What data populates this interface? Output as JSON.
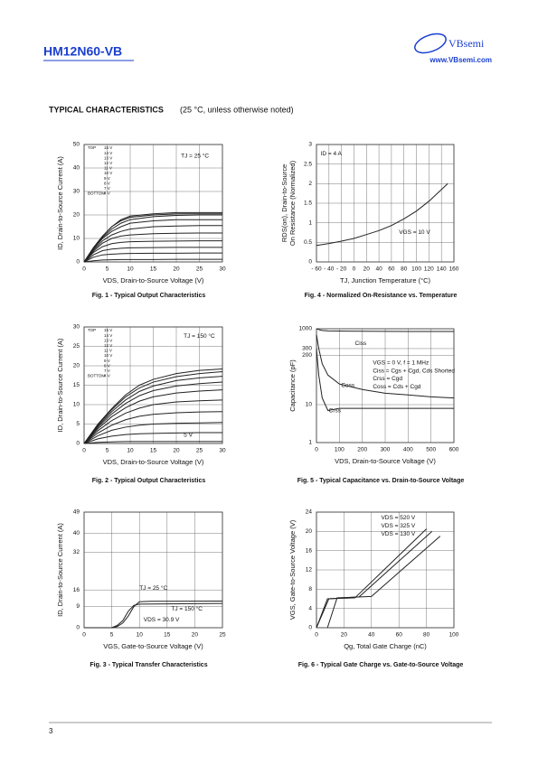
{
  "header": {
    "part": "HM12N60-VB",
    "brand": "VBsemi",
    "url": "www.VBsemi.com"
  },
  "section_title": "TYPICAL CHARACTERISTICS",
  "section_note": "(25 °C, unless otherwise noted)",
  "page_number": "3",
  "chart_data": [
    {
      "type": "line",
      "caption": "Fig. 1 - Typical Output Characteristics",
      "xlabel": "VDS, Drain-to-Source Voltage (V)",
      "ylabel": [
        "ID, Drain-to-Source Current (A)"
      ],
      "xlim": [
        0,
        30
      ],
      "xticks": [
        0,
        5,
        10,
        15,
        20,
        25,
        30
      ],
      "ylim": [
        0,
        50
      ],
      "yticks": [
        0,
        10,
        20,
        30,
        40,
        50
      ],
      "grid": true,
      "legend_top": "TOP",
      "legend_bottom": "BOTTOM",
      "annotations": [
        "TJ = 25 °C"
      ],
      "x": [
        0,
        2,
        4,
        6,
        8,
        10,
        15,
        20,
        25,
        30
      ],
      "series": [
        {
          "name": "15 V",
          "color": "#222",
          "values": [
            0,
            6,
            11,
            15,
            18,
            19.5,
            20.5,
            21,
            21,
            21
          ]
        },
        {
          "name": "14 V",
          "color": "#222",
          "values": [
            0,
            6,
            11,
            15,
            17.5,
            19,
            20,
            20.5,
            20.5,
            20.5
          ]
        },
        {
          "name": "13 V",
          "color": "#222",
          "values": [
            0,
            5.8,
            10.5,
            14,
            16.5,
            18,
            19.3,
            19.8,
            20,
            20
          ]
        },
        {
          "name": "12 V",
          "color": "#222",
          "values": [
            0,
            5.5,
            10,
            13,
            15,
            16.5,
            17.5,
            18,
            18,
            18
          ]
        },
        {
          "name": "11 V",
          "color": "#222",
          "values": [
            0,
            5,
            9,
            11.5,
            13,
            14,
            15,
            15.3,
            15.5,
            15.5
          ]
        },
        {
          "name": "10 V",
          "color": "#222",
          "values": [
            0,
            4.5,
            8,
            10,
            11,
            11.5,
            12,
            12.2,
            12.3,
            12.3
          ]
        },
        {
          "name": "9 V",
          "color": "#222",
          "values": [
            0,
            4,
            6.5,
            7.8,
            8.3,
            8.6,
            8.8,
            8.9,
            9,
            9
          ]
        },
        {
          "name": "8 V",
          "color": "#222",
          "values": [
            0,
            3,
            4.8,
            5.5,
            5.8,
            6,
            6.1,
            6.2,
            6.2,
            6.2
          ]
        },
        {
          "name": "7 V",
          "color": "#222",
          "values": [
            0,
            2,
            3,
            3.3,
            3.5,
            3.6,
            3.7,
            3.7,
            3.8,
            3.8
          ]
        },
        {
          "name": "4 V",
          "color": "#222",
          "values": [
            0,
            0.5,
            0.8,
            0.9,
            1,
            1,
            1,
            1.1,
            1.1,
            1.1
          ]
        }
      ]
    },
    {
      "type": "line",
      "caption": "Fig. 4 - Normalized On-Resistance vs. Temperature",
      "xlabel": "TJ, Junction Temperature (°C)",
      "ylabel": [
        "RDS(on), Drain-to-Source",
        "On Resistance (Normalized)"
      ],
      "xlim": [
        -60,
        160
      ],
      "xticks": [
        {
          "value": -60,
          "label": "- 60"
        },
        {
          "value": -40,
          "label": "- 40"
        },
        {
          "value": -20,
          "label": "- 20"
        },
        0,
        20,
        40,
        60,
        80,
        100,
        120,
        140,
        160
      ],
      "ylim": [
        0,
        3
      ],
      "yticks": [
        0,
        0.5,
        1,
        1.5,
        2,
        2.5,
        3
      ],
      "grid": true,
      "annotations": [
        "ID = 4 A",
        "VGS = 10 V"
      ],
      "x": [
        -60,
        -40,
        -20,
        0,
        20,
        40,
        60,
        80,
        100,
        120,
        140,
        150
      ],
      "series": [
        {
          "color": "#222",
          "values": [
            0.42,
            0.47,
            0.53,
            0.6,
            0.7,
            0.8,
            0.93,
            1.1,
            1.3,
            1.55,
            1.85,
            2.0
          ]
        }
      ]
    },
    {
      "type": "line",
      "caption": "Fig. 2 - Typical Output Characteristics",
      "xlabel": "VDS, Drain-to-Source Voltage (V)",
      "ylabel": [
        "ID, Drain-to-Source Current (A)"
      ],
      "xlim": [
        0,
        30
      ],
      "xticks": [
        0,
        5,
        10,
        15,
        20,
        25,
        30
      ],
      "ylim": [
        0,
        30
      ],
      "yticks": [
        0,
        5,
        10,
        15,
        20,
        25,
        30
      ],
      "grid": true,
      "legend_top": "TOP",
      "legend_bottom": "BOTTOM",
      "annotations": [
        "TJ = 150 °C",
        "5 V"
      ],
      "x": [
        0,
        3,
        6,
        9,
        12,
        15,
        20,
        25,
        30
      ],
      "series": [
        {
          "name": "15 V",
          "color": "#222",
          "values": [
            0,
            5,
            9,
            12.5,
            15,
            16.5,
            18,
            18.8,
            19.2
          ]
        },
        {
          "name": "14 V",
          "color": "#222",
          "values": [
            0,
            4.8,
            8.7,
            12,
            14.3,
            15.8,
            17.2,
            18,
            18.5
          ]
        },
        {
          "name": "13 V",
          "color": "#222",
          "values": [
            0,
            4.5,
            8.2,
            11.2,
            13.4,
            14.8,
            16.2,
            16.9,
            17.3
          ]
        },
        {
          "name": "12 V",
          "color": "#222",
          "values": [
            0,
            4.2,
            7.6,
            10.3,
            12.3,
            13.6,
            14.8,
            15.4,
            15.8
          ]
        },
        {
          "name": "11 V",
          "color": "#222",
          "values": [
            0,
            3.8,
            6.9,
            9.2,
            10.9,
            12,
            13,
            13.5,
            13.8
          ]
        },
        {
          "name": "10 V",
          "color": "#222",
          "values": [
            0,
            3.3,
            5.9,
            7.8,
            9.1,
            10,
            10.7,
            11,
            11.2
          ]
        },
        {
          "name": "9 V",
          "color": "#222",
          "values": [
            0,
            2.7,
            4.7,
            6.1,
            7,
            7.5,
            7.9,
            8.1,
            8.2
          ]
        },
        {
          "name": "8 V",
          "color": "#222",
          "values": [
            0,
            2,
            3.4,
            4.2,
            4.7,
            5,
            5.2,
            5.3,
            5.4
          ]
        },
        {
          "name": "7 V",
          "color": "#222",
          "values": [
            0,
            1.2,
            1.9,
            2.3,
            2.5,
            2.6,
            2.7,
            2.8,
            2.8
          ]
        },
        {
          "name": "4 V",
          "color": "#222",
          "values": [
            0,
            0.3,
            0.4,
            0.5,
            0.5,
            0.5,
            0.5,
            0.5,
            0.5
          ]
        }
      ]
    },
    {
      "type": "line",
      "caption": "Fig. 5 - Typical Capacitance vs. Drain-to-Source Voltage",
      "xlabel": "VDS, Drain-to-Source Voltage (V)",
      "ylabel": [
        "Capacitance (pF)"
      ],
      "xlim": [
        0,
        600
      ],
      "xticks": [
        0,
        100,
        200,
        300,
        400,
        500,
        600
      ],
      "ylim": [
        1,
        1000
      ],
      "yticks": [
        1,
        10,
        200,
        300,
        1000
      ],
      "log_y": true,
      "grid": true,
      "annotations": [
        "Ciss",
        "VGS = 0 V, f = 1 MHz",
        "Ciss = Cgs + Cgd, Cds Shorted",
        "Crss = Cgd",
        "Coss = Cds + Cgd",
        "Coss",
        "Crss"
      ],
      "x": [
        0,
        10,
        25,
        50,
        100,
        200,
        300,
        400,
        500,
        600
      ],
      "series": [
        {
          "color": "#222",
          "values": [
            1000,
            950,
            900,
            880,
            870,
            860,
            855,
            850,
            850,
            850
          ]
        },
        {
          "color": "#222",
          "values": [
            700,
            300,
            120,
            60,
            35,
            25,
            20,
            18,
            16,
            15
          ]
        },
        {
          "color": "#222",
          "values": [
            300,
            60,
            15,
            7,
            8,
            8,
            8,
            8,
            8,
            8
          ]
        }
      ]
    },
    {
      "type": "line",
      "caption": "Fig. 3 - Typical Transfer Characteristics",
      "xlabel": "VGS, Gate-to-Source Voltage (V)",
      "ylabel": [
        "ID, Drain-to-Source Current (A)"
      ],
      "xlim": [
        0,
        25
      ],
      "xticks": [
        0,
        5,
        10,
        15,
        20,
        25
      ],
      "ylim": [
        0,
        49
      ],
      "yticks": [
        0,
        9,
        16,
        32,
        40,
        49
      ],
      "grid": true,
      "annotations": [
        "TJ = 25 °C",
        "TJ = 150 °C",
        "VDS = 30.9 V"
      ],
      "series": [
        {
          "color": "#222",
          "x": [
            0,
            5,
            6,
            7,
            8,
            9,
            10,
            12,
            25
          ],
          "values": [
            0,
            0,
            0.5,
            2,
            5,
            9,
            11,
            11.2,
            11.3
          ]
        },
        {
          "color": "#222",
          "x": [
            0,
            5,
            6,
            7,
            8,
            9,
            10,
            25
          ],
          "values": [
            0,
            0,
            1,
            3,
            7,
            9.5,
            10,
            10.3
          ]
        }
      ]
    },
    {
      "type": "line",
      "caption": "Fig. 6 - Typical Gate Charge vs. Gate-to-Source Voltage",
      "xlabel": "Qg, Total Gate Charge (nC)",
      "ylabel": [
        "VGS, Gate-to-Source Voltage (V)"
      ],
      "xlim": [
        0,
        100
      ],
      "xticks": [
        0,
        20,
        40,
        60,
        80,
        100
      ],
      "ylim": [
        0,
        24
      ],
      "yticks": [
        0,
        4,
        8,
        12,
        16,
        20,
        24
      ],
      "grid": true,
      "annotations": [
        "VDS = 520 V",
        "VDS = 325 V",
        "VDS = 130 V"
      ],
      "series": [
        {
          "color": "#222",
          "x": [
            8,
            15,
            40,
            90
          ],
          "values": [
            0,
            6.2,
            6.5,
            19
          ]
        },
        {
          "color": "#222",
          "x": [
            0,
            9,
            31,
            84
          ],
          "values": [
            0,
            6,
            6.4,
            20
          ]
        },
        {
          "color": "#222",
          "x": [
            0,
            8,
            28,
            80
          ],
          "values": [
            0,
            6,
            6.2,
            20.5
          ]
        }
      ]
    }
  ]
}
